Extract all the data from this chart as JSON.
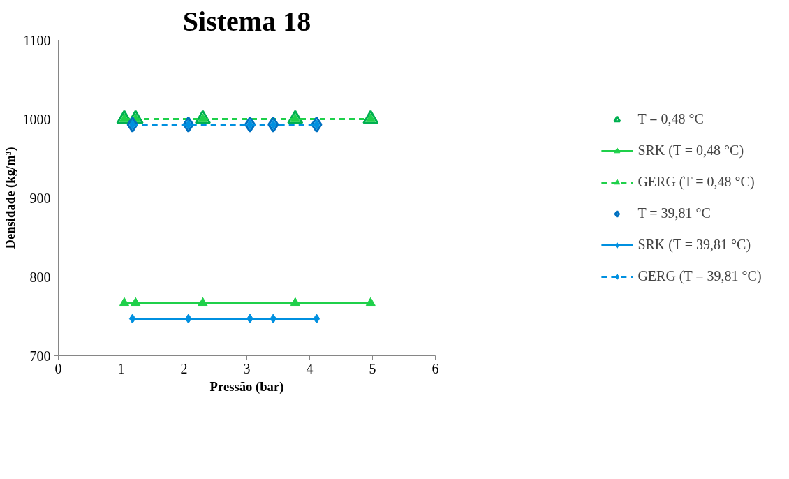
{
  "chart_data": {
    "type": "scatter",
    "title": "Sistema 18",
    "xlabel": "Pressão (bar)",
    "ylabel": "Densidade (kg/m³)",
    "xlim": [
      0,
      6
    ],
    "xticks": [
      0,
      1,
      2,
      3,
      4,
      5,
      6
    ],
    "ylim": [
      700,
      1100
    ],
    "yticks": [
      700,
      800,
      900,
      1000,
      1100
    ],
    "grid": "y",
    "legend": "right",
    "series": [
      {
        "name": "T = 0,48 °C",
        "marker": "triangle",
        "color": "#00b050",
        "x": [
          1.05,
          1.23,
          2.3,
          3.77,
          4.97
        ],
        "values": [
          1000,
          1000,
          1000,
          1000,
          1000
        ]
      },
      {
        "name": "SRK (T = 0,48 °C)",
        "type": "line",
        "marker": "triangle",
        "line_style": "solid",
        "color": "#1fd04a",
        "x": [
          1.05,
          1.23,
          2.3,
          3.77,
          4.97
        ],
        "values": [
          767,
          767,
          767,
          767,
          767
        ]
      },
      {
        "name": "GERG (T = 0,48 °C)",
        "type": "line",
        "marker": "triangle",
        "line_style": "dashed",
        "color": "#1fd04a",
        "x": [
          1.05,
          1.23,
          2.3,
          3.77,
          4.97
        ],
        "values": [
          1000,
          1000,
          1000,
          1000,
          1000
        ]
      },
      {
        "name": "T = 39,81 °C",
        "marker": "diamond",
        "color": "#0070c0",
        "x": [
          1.18,
          2.07,
          3.05,
          3.42,
          4.11
        ],
        "values": [
          993,
          993,
          993,
          993,
          993
        ]
      },
      {
        "name": "SRK (T = 39,81 °C)",
        "type": "line",
        "marker": "diamond",
        "line_style": "solid",
        "color": "#0090e0",
        "x": [
          1.18,
          2.07,
          3.05,
          3.42,
          4.11
        ],
        "values": [
          747,
          747,
          747,
          747,
          747
        ]
      },
      {
        "name": "GERG (T = 39,81 °C)",
        "type": "line",
        "marker": "diamond",
        "line_style": "dashed",
        "color": "#0090e0",
        "x": [
          1.18,
          2.07,
          3.05,
          3.42,
          4.11
        ],
        "values": [
          993,
          993,
          993,
          993,
          993
        ]
      }
    ]
  }
}
